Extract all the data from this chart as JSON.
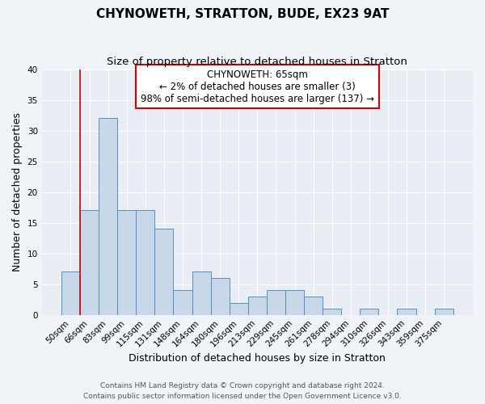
{
  "title": "CHYNOWETH, STRATTON, BUDE, EX23 9AT",
  "subtitle": "Size of property relative to detached houses in Stratton",
  "xlabel": "Distribution of detached houses by size in Stratton",
  "ylabel": "Number of detached properties",
  "bar_labels": [
    "50sqm",
    "66sqm",
    "83sqm",
    "99sqm",
    "115sqm",
    "131sqm",
    "148sqm",
    "164sqm",
    "180sqm",
    "196sqm",
    "213sqm",
    "229sqm",
    "245sqm",
    "261sqm",
    "278sqm",
    "294sqm",
    "310sqm",
    "326sqm",
    "343sqm",
    "359sqm",
    "375sqm"
  ],
  "bar_values": [
    7,
    17,
    32,
    17,
    17,
    14,
    4,
    7,
    6,
    2,
    3,
    4,
    4,
    3,
    1,
    0,
    1,
    0,
    1,
    0,
    1
  ],
  "bar_color": "#c8d8e8",
  "bar_edge_color": "#5590bb",
  "annotation_box_text": "CHYNOWETH: 65sqm\n← 2% of detached houses are smaller (3)\n98% of semi-detached houses are larger (137) →",
  "annotation_box_edge_color": "#cc0000",
  "annotation_box_bg_color": "#ffffff",
  "vline_color": "#cc0000",
  "ylim": [
    0,
    40
  ],
  "yticks": [
    0,
    5,
    10,
    15,
    20,
    25,
    30,
    35,
    40
  ],
  "footer_line1": "Contains HM Land Registry data © Crown copyright and database right 2024.",
  "footer_line2": "Contains public sector information licensed under the Open Government Licence v3.0.",
  "bg_color": "#f0f4f8",
  "plot_bg_color": "#e8eef4",
  "grid_color": "#ffffff",
  "title_fontsize": 11,
  "subtitle_fontsize": 9.5,
  "axis_label_fontsize": 9,
  "tick_fontsize": 7.5,
  "annotation_fontsize": 8.5,
  "footer_fontsize": 6.5
}
